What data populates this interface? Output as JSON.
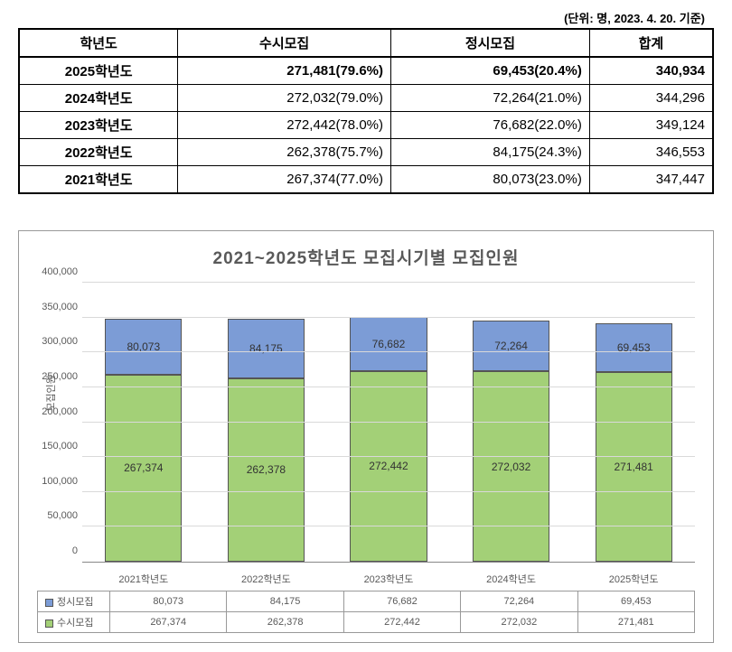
{
  "unit_note": "(단위: 명, 2023. 4. 20. 기준)",
  "table": {
    "headers": [
      "학년도",
      "수시모집",
      "정시모집",
      "합계"
    ],
    "rows": [
      {
        "bold": true,
        "year": "2025학년도",
        "susi": "271,481(79.6%)",
        "jeongsi": "69,453(20.4%)",
        "total": "340,934"
      },
      {
        "bold": false,
        "year": "2024학년도",
        "susi": "272,032(79.0%)",
        "jeongsi": "72,264(21.0%)",
        "total": "344,296"
      },
      {
        "bold": false,
        "year": "2023학년도",
        "susi": "272,442(78.0%)",
        "jeongsi": "76,682(22.0%)",
        "total": "349,124"
      },
      {
        "bold": false,
        "year": "2022학년도",
        "susi": "262,378(75.7%)",
        "jeongsi": "84,175(24.3%)",
        "total": "346,553"
      },
      {
        "bold": false,
        "year": "2021학년도",
        "susi": "267,374(77.0%)",
        "jeongsi": "80,073(23.0%)",
        "total": "347,447"
      }
    ]
  },
  "chart": {
    "title": "2021~2025학년도 모집시기별 모집인원",
    "type": "stacked-bar",
    "y_axis_label": "모집인원",
    "ylim": [
      0,
      400000
    ],
    "ytick_step": 50000,
    "y_ticks": [
      "0",
      "50,000",
      "100,000",
      "150,000",
      "200,000",
      "250,000",
      "300,000",
      "350,000",
      "400,000"
    ],
    "categories": [
      "2021학년도",
      "2022학년도",
      "2023학년도",
      "2024학년도",
      "2025학년도"
    ],
    "series": {
      "jeongsi": {
        "label": "정시모집",
        "values": [
          80073,
          84175,
          76682,
          72264,
          69453
        ],
        "labels": [
          "80,073",
          "84,175",
          "76,682",
          "72,264",
          "69,453"
        ],
        "color": "#7c9cd6"
      },
      "susi": {
        "label": "수시모집",
        "values": [
          267374,
          262378,
          272442,
          272032,
          271481
        ],
        "labels": [
          "267,374",
          "262,378",
          "272,442",
          "272,032",
          "271,481"
        ],
        "color": "#a3d077"
      }
    },
    "background_color": "#ffffff",
    "grid_color": "#d9d9d9",
    "text_color": "#595959",
    "title_fontsize": 19,
    "label_fontsize": 11,
    "bar_width_pct": 74
  }
}
